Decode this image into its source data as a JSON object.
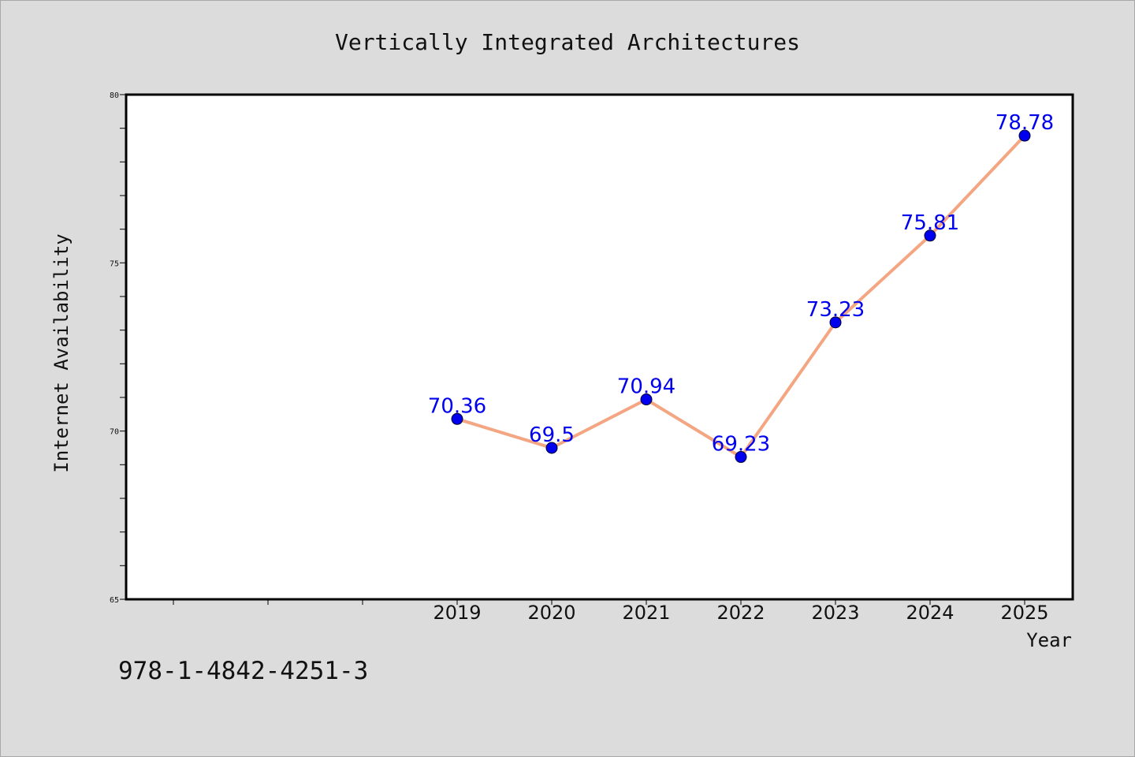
{
  "chart_data": {
    "type": "line",
    "title": "Vertically Integrated Architectures",
    "xlabel": "Year",
    "ylabel": "Internet Availability",
    "categories": [
      "2019",
      "2020",
      "2021",
      "2022",
      "2023",
      "2024",
      "2025"
    ],
    "series": [
      {
        "values": [
          70.36,
          69.5,
          70.94,
          69.23,
          73.23,
          75.81,
          78.78
        ],
        "data_labels": [
          "70.36",
          "69.5",
          "70.94",
          "69.23",
          "73.23",
          "75.81",
          "78.78"
        ],
        "line_color": "#f4a582",
        "marker_color": "#0000ee"
      }
    ],
    "ylim": [
      65,
      80
    ],
    "y_ticks": [
      "65",
      "70",
      "75",
      "80"
    ],
    "grid": false,
    "legend": "none"
  },
  "footer": {
    "isbn": "978-1-4842-4251-3"
  },
  "colors": {
    "background": "#dcdcdc",
    "plot_background": "#ffffff",
    "label_color": "#0000ee"
  }
}
